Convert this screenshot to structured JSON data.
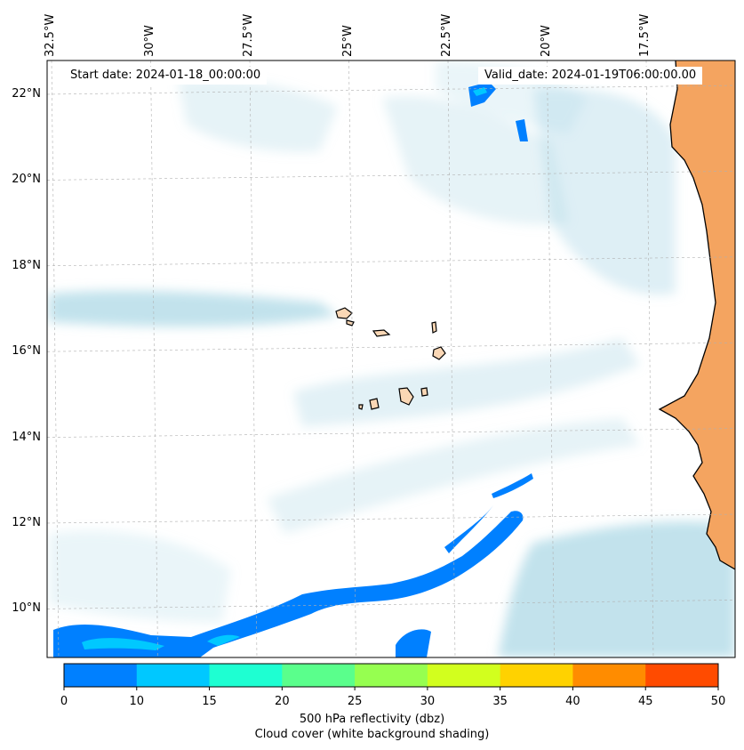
{
  "map": {
    "start_date_label": "Start date: 2024-01-18_00:00:00",
    "valid_date_label": "Valid_date: 2024-01-19T06:00:00.00",
    "lon_labels": [
      {
        "text": "32.5°W",
        "lon": -32.5
      },
      {
        "text": "30°W",
        "lon": -30.0
      },
      {
        "text": "27.5°W",
        "lon": -27.5
      },
      {
        "text": "25°W",
        "lon": -25.0
      },
      {
        "text": "22.5°W",
        "lon": -22.5
      },
      {
        "text": "20°W",
        "lon": -20.0
      },
      {
        "text": "17.5°W",
        "lon": -17.5
      }
    ],
    "lat_labels": [
      {
        "text": "22°N",
        "lat": 22
      },
      {
        "text": "20°N",
        "lat": 20
      },
      {
        "text": "18°N",
        "lat": 18
      },
      {
        "text": "16°N",
        "lat": 16
      },
      {
        "text": "14°N",
        "lat": 14
      },
      {
        "text": "12°N",
        "lat": 12
      },
      {
        "text": "10°N",
        "lat": 10
      }
    ],
    "colors": {
      "cloud": "#add8e6",
      "land": "#f4a460",
      "land_light": "#fad7b5",
      "coastline": "#000000",
      "gridline": "#b0b0b0"
    }
  },
  "colorbar": {
    "ticks": [
      "0",
      "10",
      "15",
      "20",
      "25",
      "30",
      "35",
      "40",
      "45",
      "50"
    ],
    "colors": [
      "#0080ff",
      "#00c8ff",
      "#1effd2",
      "#5aff8c",
      "#96ff50",
      "#d2ff1e",
      "#ffd200",
      "#ff8c00",
      "#ff4b00"
    ],
    "label_line1": "500 hPa reflectivity (dbz)",
    "label_line2": "Cloud cover (white background shading)"
  }
}
